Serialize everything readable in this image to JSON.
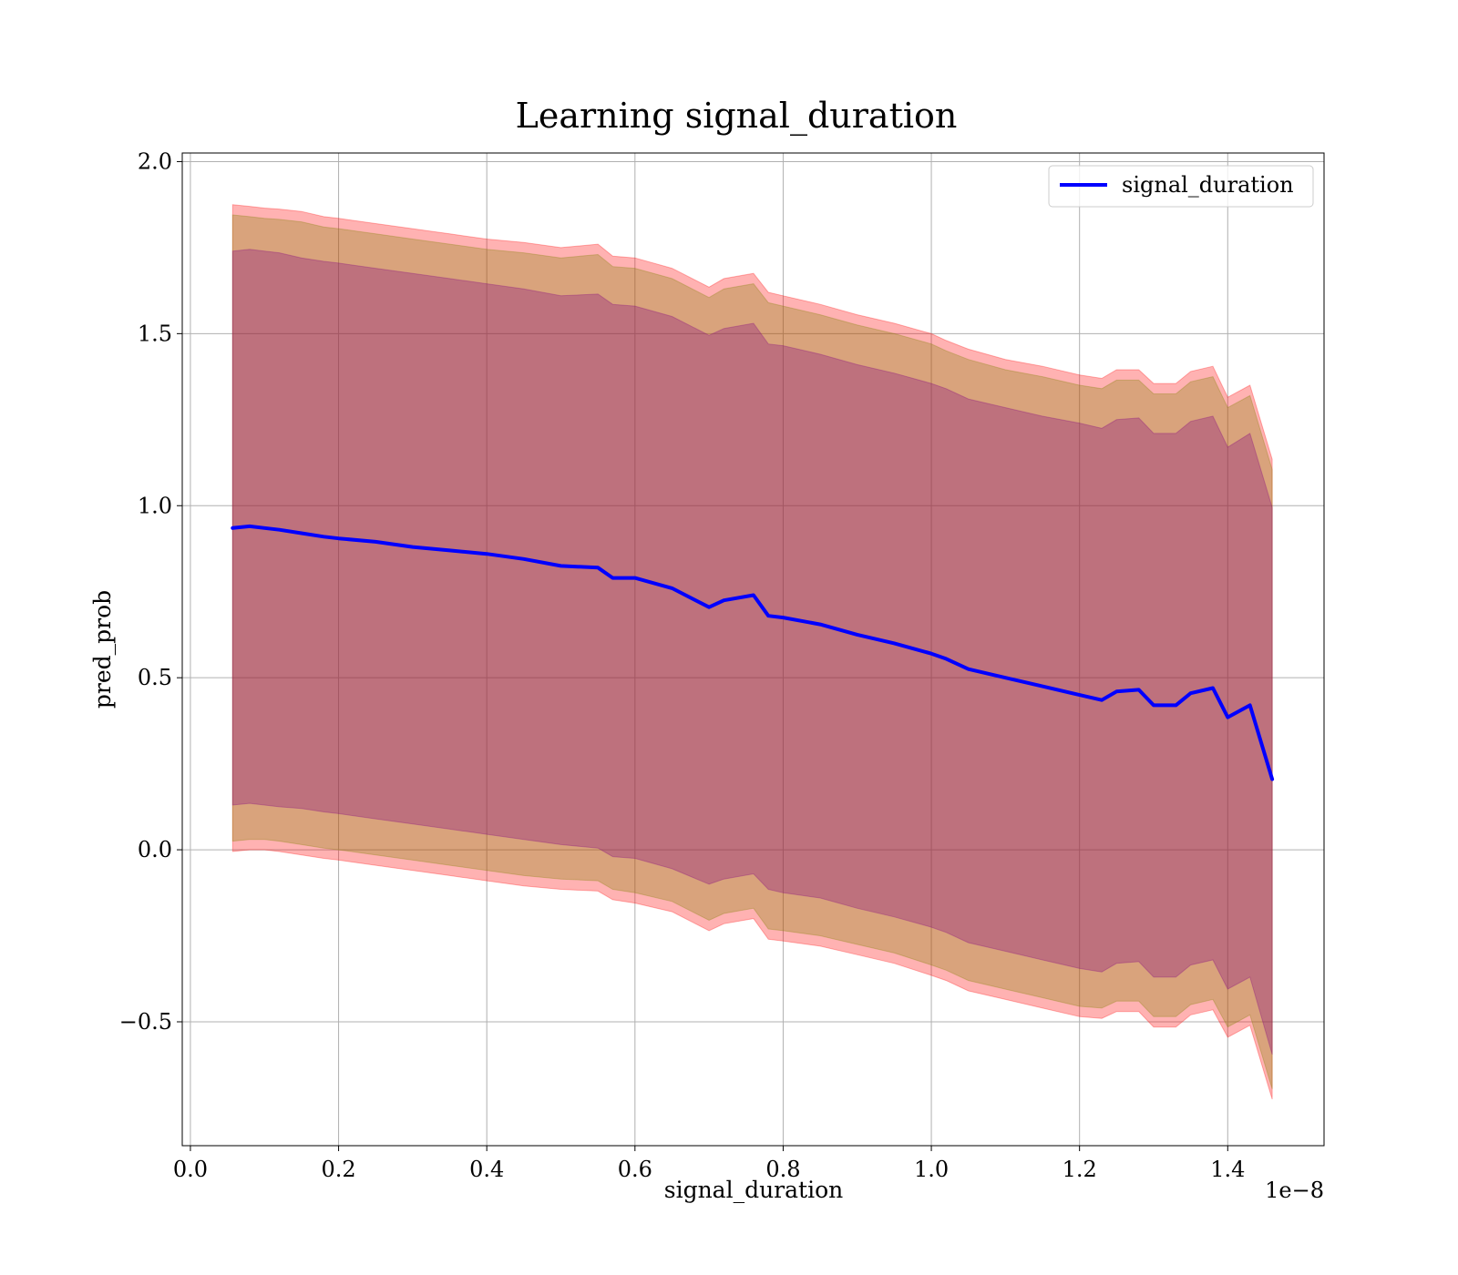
{
  "chart_data": {
    "type": "line",
    "title": "Learning signal_duration",
    "xlabel": "signal_duration",
    "ylabel": "pred_prob",
    "x_offset_text": "1e−8",
    "xlim": [
      -0.011,
      1.53
    ],
    "ylim": [
      -0.86,
      2.025
    ],
    "grid": true,
    "legend_position": "top-right",
    "x_ticks": [
      0.0,
      0.2,
      0.4,
      0.6,
      0.8,
      1.0,
      1.2,
      1.4
    ],
    "x_tick_labels": [
      "0.0",
      "0.2",
      "0.4",
      "0.6",
      "0.8",
      "1.0",
      "1.2",
      "1.4"
    ],
    "y_ticks": [
      -0.5,
      0.0,
      0.5,
      1.0,
      1.5,
      2.0
    ],
    "y_tick_labels": [
      "−0.5",
      "0.0",
      "0.5",
      "1.0",
      "1.5",
      "2.0"
    ],
    "x": [
      0.057,
      0.08,
      0.1,
      0.12,
      0.15,
      0.18,
      0.2,
      0.25,
      0.3,
      0.35,
      0.4,
      0.45,
      0.5,
      0.55,
      0.57,
      0.6,
      0.65,
      0.7,
      0.72,
      0.76,
      0.78,
      0.8,
      0.85,
      0.9,
      0.95,
      1.0,
      1.02,
      1.05,
      1.1,
      1.15,
      1.2,
      1.23,
      1.25,
      1.28,
      1.3,
      1.33,
      1.35,
      1.38,
      1.4,
      1.43,
      1.46
    ],
    "series": [
      {
        "name": "signal_duration",
        "color": "#0000ff",
        "values": [
          0.935,
          0.94,
          0.935,
          0.93,
          0.92,
          0.91,
          0.905,
          0.895,
          0.88,
          0.87,
          0.86,
          0.845,
          0.825,
          0.82,
          0.79,
          0.79,
          0.76,
          0.705,
          0.725,
          0.74,
          0.68,
          0.675,
          0.655,
          0.625,
          0.6,
          0.57,
          0.555,
          0.525,
          0.5,
          0.475,
          0.45,
          0.435,
          0.46,
          0.465,
          0.42,
          0.42,
          0.455,
          0.47,
          0.385,
          0.42,
          0.205
        ]
      }
    ],
    "bands": [
      {
        "color": "#ff0000",
        "opacity": 0.3,
        "upper": [
          1.875,
          1.87,
          1.865,
          1.862,
          1.855,
          1.84,
          1.835,
          1.82,
          1.805,
          1.79,
          1.775,
          1.765,
          1.75,
          1.76,
          1.725,
          1.72,
          1.69,
          1.635,
          1.66,
          1.675,
          1.62,
          1.61,
          1.585,
          1.555,
          1.53,
          1.5,
          1.48,
          1.455,
          1.425,
          1.405,
          1.38,
          1.37,
          1.395,
          1.395,
          1.355,
          1.355,
          1.39,
          1.405,
          1.315,
          1.35,
          1.135
        ],
        "lower": [
          -0.005,
          0.0,
          0.0,
          -0.005,
          -0.015,
          -0.025,
          -0.03,
          -0.045,
          -0.06,
          -0.075,
          -0.09,
          -0.105,
          -0.115,
          -0.12,
          -0.145,
          -0.155,
          -0.18,
          -0.235,
          -0.215,
          -0.2,
          -0.26,
          -0.265,
          -0.28,
          -0.305,
          -0.33,
          -0.365,
          -0.38,
          -0.41,
          -0.435,
          -0.46,
          -0.485,
          -0.49,
          -0.47,
          -0.47,
          -0.515,
          -0.515,
          -0.48,
          -0.465,
          -0.545,
          -0.51,
          -0.725
        ]
      },
      {
        "color": "#808000",
        "opacity": 0.3,
        "upper": [
          1.845,
          1.84,
          1.835,
          1.832,
          1.825,
          1.81,
          1.805,
          1.79,
          1.775,
          1.76,
          1.745,
          1.735,
          1.72,
          1.73,
          1.695,
          1.69,
          1.66,
          1.605,
          1.63,
          1.645,
          1.59,
          1.58,
          1.555,
          1.525,
          1.5,
          1.47,
          1.45,
          1.425,
          1.395,
          1.375,
          1.35,
          1.34,
          1.365,
          1.365,
          1.325,
          1.325,
          1.36,
          1.375,
          1.285,
          1.32,
          1.105
        ],
        "lower": [
          0.025,
          0.03,
          0.03,
          0.025,
          0.015,
          0.005,
          0.0,
          -0.015,
          -0.03,
          -0.045,
          -0.06,
          -0.075,
          -0.085,
          -0.09,
          -0.115,
          -0.125,
          -0.15,
          -0.205,
          -0.185,
          -0.17,
          -0.23,
          -0.235,
          -0.25,
          -0.275,
          -0.3,
          -0.335,
          -0.35,
          -0.38,
          -0.405,
          -0.43,
          -0.455,
          -0.46,
          -0.44,
          -0.44,
          -0.485,
          -0.485,
          -0.45,
          -0.435,
          -0.515,
          -0.48,
          -0.695
        ]
      },
      {
        "color": "#800080",
        "opacity": 0.3,
        "upper": [
          1.74,
          1.745,
          1.74,
          1.735,
          1.72,
          1.71,
          1.705,
          1.69,
          1.675,
          1.66,
          1.645,
          1.63,
          1.61,
          1.615,
          1.585,
          1.58,
          1.55,
          1.495,
          1.515,
          1.53,
          1.47,
          1.465,
          1.44,
          1.41,
          1.385,
          1.355,
          1.34,
          1.31,
          1.285,
          1.26,
          1.24,
          1.225,
          1.25,
          1.255,
          1.21,
          1.21,
          1.245,
          1.26,
          1.17,
          1.21,
          0.995
        ],
        "lower": [
          0.13,
          0.135,
          0.13,
          0.125,
          0.12,
          0.11,
          0.105,
          0.09,
          0.075,
          0.06,
          0.045,
          0.03,
          0.015,
          0.005,
          -0.02,
          -0.025,
          -0.055,
          -0.1,
          -0.085,
          -0.07,
          -0.115,
          -0.125,
          -0.14,
          -0.17,
          -0.195,
          -0.225,
          -0.24,
          -0.27,
          -0.295,
          -0.32,
          -0.345,
          -0.355,
          -0.33,
          -0.325,
          -0.37,
          -0.37,
          -0.335,
          -0.32,
          -0.405,
          -0.37,
          -0.595
        ]
      }
    ]
  }
}
